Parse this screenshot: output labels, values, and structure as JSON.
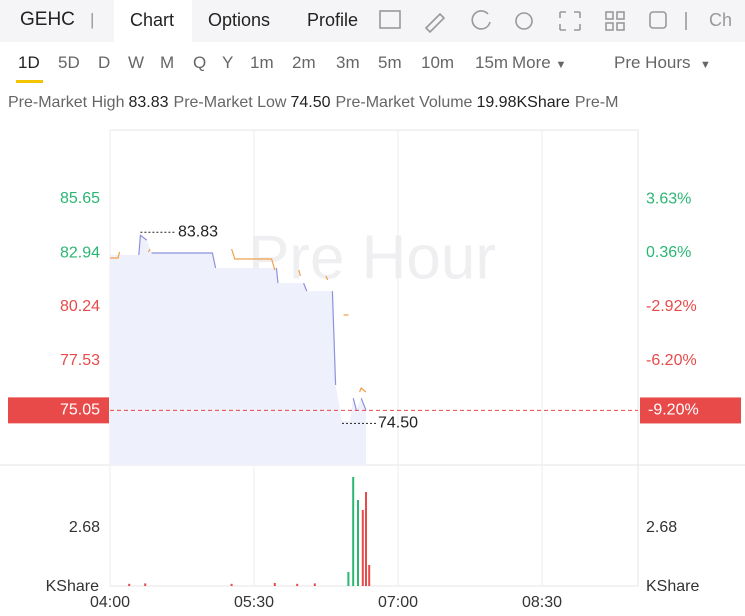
{
  "header": {
    "symbol": "GEHC",
    "tabs": [
      "Chart",
      "Options",
      "Profile",
      "Ch"
    ]
  },
  "periods": [
    "1D",
    "5D",
    "D",
    "W",
    "M",
    "Q",
    "Y",
    "1m",
    "2m",
    "3m",
    "5m",
    "10m",
    "15m"
  ],
  "more": "More",
  "session": "Pre Hours",
  "stats": [
    {
      "label": "Pre-Market High",
      "value": "83.83"
    },
    {
      "label": "Pre-Market Low",
      "value": "74.50"
    },
    {
      "label": "Pre-Market Volume",
      "value": "19.98KShare"
    },
    {
      "label": "Pre-M"
    }
  ],
  "chart_data": [
    {
      "type": "line",
      "watermark": "Pre Hour",
      "x": [
        "04:00",
        "04:05",
        "04:06",
        "04:18",
        "04:19",
        "04:23",
        "04:24",
        "04:25",
        "04:26",
        "05:04",
        "05:06",
        "05:16",
        "05:18",
        "05:41",
        "05:43",
        "05:44",
        "05:45",
        "05:58",
        "05:59",
        "06:01",
        "06:03",
        "06:15",
        "06:16",
        "06:19",
        "06:21",
        "06:24",
        "06:25",
        "06:26",
        "06:29",
        "06:30",
        "06:31",
        "06:32",
        "06:34",
        "06:36",
        "06:37",
        "06:40"
      ],
      "series": [
        {
          "color": "#8d92dc",
          "fill": "#eef0fb",
          "values": [
            82.84,
            null,
            null,
            82.84,
            83.83,
            83.59,
            null,
            null,
            82.94,
            82.94,
            82.19,
            null,
            null,
            null,
            null,
            82.19,
            81.43,
            null,
            null,
            81.43,
            81.03,
            null,
            null,
            81.03,
            76.32,
            null,
            74.5,
            null,
            null,
            74.5,
            null,
            75.66,
            75.06,
            null,
            75.66,
            75.05
          ]
        },
        {
          "color": "#f0a04b",
          "values": [
            82.69,
            82.69,
            82.99,
            null,
            null,
            null,
            82.99,
            83.14,
            null,
            null,
            null,
            83.14,
            82.64,
            82.64,
            82.09,
            null,
            null,
            82.09,
            81.79,
            null,
            null,
            81.79,
            81.59,
            null,
            null,
            81.49,
            null,
            79.83,
            79.83,
            null,
            75.97,
            null,
            null,
            75.97,
            76.17,
            75.97
          ]
        }
      ],
      "xlim": [
        "04:00",
        "09:30"
      ],
      "xticks": [
        "04:00",
        "05:30",
        "07:00",
        "08:30"
      ],
      "ylim": [
        72.31,
        89.11
      ],
      "yticks": [
        85.65,
        82.94,
        80.24,
        77.53
      ],
      "y2lim": [
        -12.51,
        7.82
      ],
      "y2ticks": [
        {
          "value": 3.63,
          "label": "3.63%"
        },
        {
          "value": 0.36,
          "label": "0.36%"
        },
        {
          "value": -2.92,
          "label": "-2.92%"
        },
        {
          "value": -6.2,
          "label": "-6.20%"
        }
      ],
      "up_color": "#2bb673",
      "down_color": "#e84a4a",
      "high": {
        "x": "04:19",
        "value": 83.83,
        "label": "83.83"
      },
      "low": {
        "x": "06:25",
        "value": 74.5,
        "label": "74.50"
      },
      "last_price": 75.05,
      "last_change": {
        "value": -9.2,
        "label": "-9.20%"
      },
      "grid": true
    },
    {
      "type": "bar",
      "x": [
        "04:12",
        "04:22",
        "05:16",
        "05:43",
        "05:57",
        "06:08",
        "06:29",
        "06:32",
        "06:35",
        "06:38",
        "06:40",
        "06:42"
      ],
      "values": [
        0.1,
        0.12,
        0.1,
        0.14,
        0.1,
        0.12,
        0.65,
        5.04,
        3.97,
        3.51,
        4.34,
        0.97
      ],
      "colors": [
        "#e84a4a",
        "#e84a4a",
        "#e84a4a",
        "#e84a4a",
        "#e84a4a",
        "#e84a4a",
        "#2bb673",
        "#2bb673",
        "#2bb673",
        "#e84a4a",
        "#e84a4a",
        "#e84a4a"
      ],
      "xlim": [
        "04:00",
        "09:30"
      ],
      "ylim": [
        0,
        5.59
      ],
      "yticks": [
        2.68
      ],
      "y2ticks": [
        2.68
      ],
      "y_label": "KShare",
      "y2_label": "KShare"
    }
  ]
}
